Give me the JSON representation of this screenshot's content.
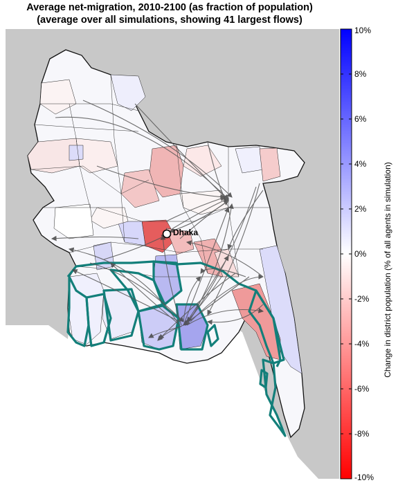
{
  "title_line1": "Average net-migration, 2010-2100 (as fraction of population)",
  "title_line2": "(average over all simulations, showing 41 largest flows)",
  "city_label": "Dhaka",
  "colorbar": {
    "label": "Change in district population (% of all agents in simulation)",
    "ticks": [
      "10%",
      "8%",
      "6%",
      "4%",
      "2%",
      "0%",
      "-2%",
      "-4%",
      "-6%",
      "-8%",
      "-10%"
    ],
    "max_color": "#0000ff",
    "mid_color": "#ffffff",
    "min_color": "#ff0000"
  },
  "colors": {
    "background_land": "#c8c8c8",
    "sea": "#ffffff",
    "coastal_outline": "#137f7a",
    "flow_arrows": "#555555"
  }
}
